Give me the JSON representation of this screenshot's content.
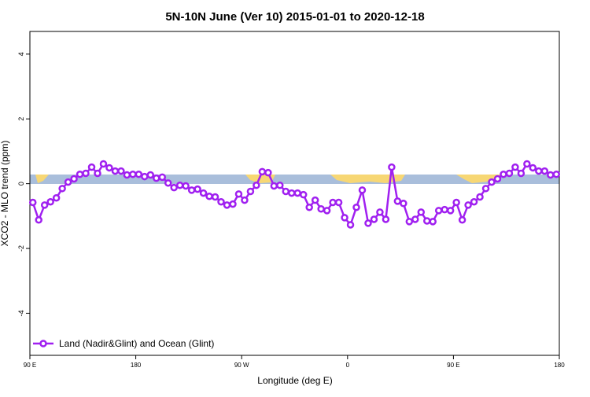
{
  "chart_data": {
    "type": "line",
    "title": "5N-10N June (Ver 10)   2015-01-01 to 2020-12-18",
    "x_label": "Longitude (deg E)",
    "y_label": "XCO2 - MLO trend (ppm)",
    "x": [
      92.5,
      97.5,
      102.5,
      107.5,
      112.5,
      117.5,
      122.5,
      127.5,
      132.5,
      137.5,
      142.5,
      147.5,
      152.5,
      157.5,
      162.5,
      167.5,
      172.5,
      177.5,
      182.5,
      187.5,
      192.5,
      197.5,
      202.5,
      207.5,
      212.5,
      217.5,
      222.5,
      227.5,
      232.5,
      237.5,
      242.5,
      247.5,
      252.5,
      257.5,
      262.5,
      267.5,
      272.5,
      277.5,
      282.5,
      287.5,
      292.5,
      297.5,
      302.5,
      307.5,
      312.5,
      317.5,
      322.5,
      327.5,
      332.5,
      337.5,
      342.5,
      347.5,
      352.5,
      357.5,
      362.5,
      367.5,
      372.5,
      377.5,
      382.5,
      387.5,
      392.5,
      397.5,
      402.5,
      407.5,
      412.5,
      417.5,
      422.5,
      427.5,
      432.5,
      437.5,
      442.5,
      447.5,
      452.5,
      457.5,
      462.5,
      467.5,
      472.5,
      477.5,
      482.5,
      487.5,
      492.5,
      497.5,
      502.5,
      507.5,
      512.5,
      517.5,
      522.5,
      527.5,
      532.5,
      537.5
    ],
    "series": [
      {
        "name": "Land (Nadir&Glint) and Ocean (Glint)",
        "color": "#a020f0",
        "values": [
          -0.58,
          -1.12,
          -0.66,
          -0.56,
          -0.44,
          -0.15,
          0.05,
          0.15,
          0.29,
          0.32,
          0.51,
          0.32,
          0.61,
          0.49,
          0.39,
          0.39,
          0.27,
          0.29,
          0.29,
          0.22,
          0.27,
          0.17,
          0.2,
          0.02,
          -0.12,
          -0.05,
          -0.07,
          -0.2,
          -0.17,
          -0.29,
          -0.39,
          -0.41,
          -0.56,
          -0.66,
          -0.63,
          -0.32,
          -0.51,
          -0.24,
          -0.05,
          0.37,
          0.34,
          -0.07,
          -0.05,
          -0.24,
          -0.29,
          -0.29,
          -0.34,
          -0.73,
          -0.51,
          -0.78,
          -0.83,
          -0.58,
          -0.58,
          -1.05,
          -1.27,
          -0.73,
          -0.2,
          -1.22,
          -1.1,
          -0.88,
          -1.1,
          0.51,
          -0.54,
          -0.61,
          -1.17,
          -1.1,
          -0.88,
          -1.15,
          -1.17,
          -0.83,
          -0.8,
          -0.83,
          -0.58,
          -1.12,
          -0.66,
          -0.56,
          -0.41,
          -0.15,
          0.05,
          0.15,
          0.29,
          0.32,
          0.51,
          0.32,
          0.61,
          0.49,
          0.39,
          0.39,
          0.27,
          0.29
        ]
      }
    ],
    "xlim": [
      90,
      540
    ],
    "xticks": [
      {
        "value": 90,
        "label": "90 E"
      },
      {
        "value": 180,
        "label": "180"
      },
      {
        "value": 270,
        "label": "90 W"
      },
      {
        "value": 360,
        "label": "0"
      },
      {
        "value": 450,
        "label": "90 E"
      },
      {
        "value": 540,
        "label": "180"
      }
    ],
    "ylim": [
      -5.3,
      4.7
    ],
    "yticks": [
      -4,
      -2,
      0,
      2,
      4
    ],
    "legend": "bottom-left"
  }
}
